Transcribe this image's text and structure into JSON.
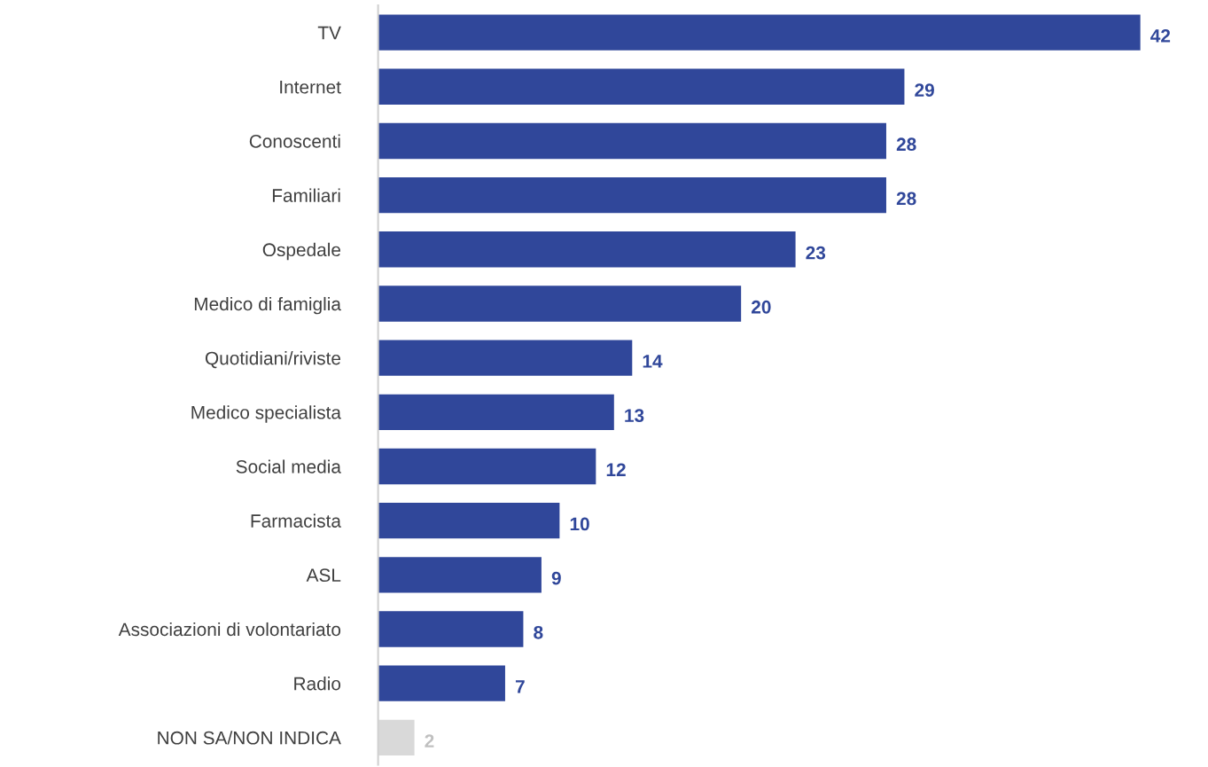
{
  "chart_data": {
    "type": "bar",
    "orientation": "horizontal",
    "categories": [
      "TV",
      "Internet",
      "Conoscenti",
      "Familiari",
      "Ospedale",
      "Medico di famiglia",
      "Quotidiani/riviste",
      "Medico specialista",
      "Social media",
      "Farmacista",
      "ASL",
      "Associazioni di volontariato",
      "Radio",
      "NON SA/NON INDICA"
    ],
    "values": [
      42,
      29,
      28,
      28,
      23,
      20,
      14,
      13,
      12,
      10,
      9,
      8,
      7,
      2
    ],
    "colors": [
      "#30479a",
      "#30479a",
      "#30479a",
      "#30479a",
      "#30479a",
      "#30479a",
      "#30479a",
      "#30479a",
      "#30479a",
      "#30479a",
      "#30479a",
      "#30479a",
      "#30479a",
      "#d9d9d9"
    ],
    "data_labels": true,
    "grid": false,
    "legend": false
  }
}
